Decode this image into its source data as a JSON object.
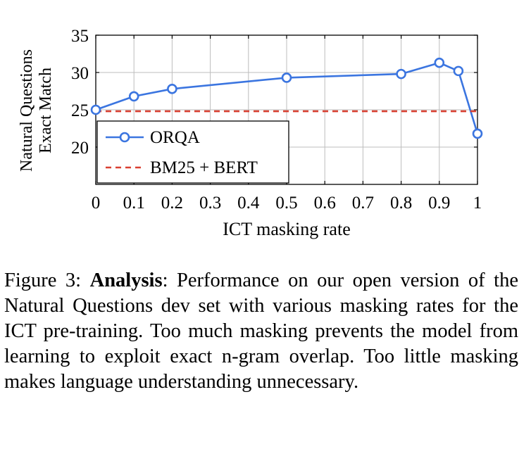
{
  "chart_data": {
    "type": "line",
    "x": [
      0,
      0.1,
      0.2,
      0.5,
      0.8,
      0.9,
      0.95,
      1
    ],
    "xticks": [
      0,
      0.1,
      0.2,
      0.3,
      0.4,
      0.5,
      0.6,
      0.7,
      0.8,
      0.9,
      1
    ],
    "xtick_labels": [
      "0",
      "0.1",
      "0.2",
      "0.3",
      "0.4",
      "0.5",
      "0.6",
      "0.7",
      "0.8",
      "0.9",
      "1"
    ],
    "yticks": [
      20,
      25,
      30,
      35
    ],
    "ytick_labels": [
      "20",
      "25",
      "30",
      "35"
    ],
    "xlim": [
      0,
      1
    ],
    "ylim": [
      15,
      35
    ],
    "xlabel": "ICT masking rate",
    "ylabel_line1": "Natural Questions",
    "ylabel_line2": "Exact Match",
    "grid": true,
    "legend_placement": "lower-left",
    "series": [
      {
        "name": "ORQA",
        "values": [
          25.0,
          26.8,
          27.8,
          29.3,
          29.8,
          31.3,
          30.2,
          21.8
        ],
        "color": "#3b75e0",
        "style": "solid-circle-markers"
      },
      {
        "name": "BM25 + BERT",
        "values": [
          24.8,
          24.8,
          24.8,
          24.8,
          24.8,
          24.8,
          24.8,
          24.8
        ],
        "color": "#d94032",
        "style": "dashed"
      }
    ]
  },
  "caption": {
    "label": "Figure 3:",
    "bold": "Analysis",
    "text": ": Performance on our open version of the Natural Questions dev set with various masking rates for the ICT pre-training. Too much masking prevents the model from learning to exploit exact n-gram overlap. Too little masking makes language understanding unnecessary."
  }
}
